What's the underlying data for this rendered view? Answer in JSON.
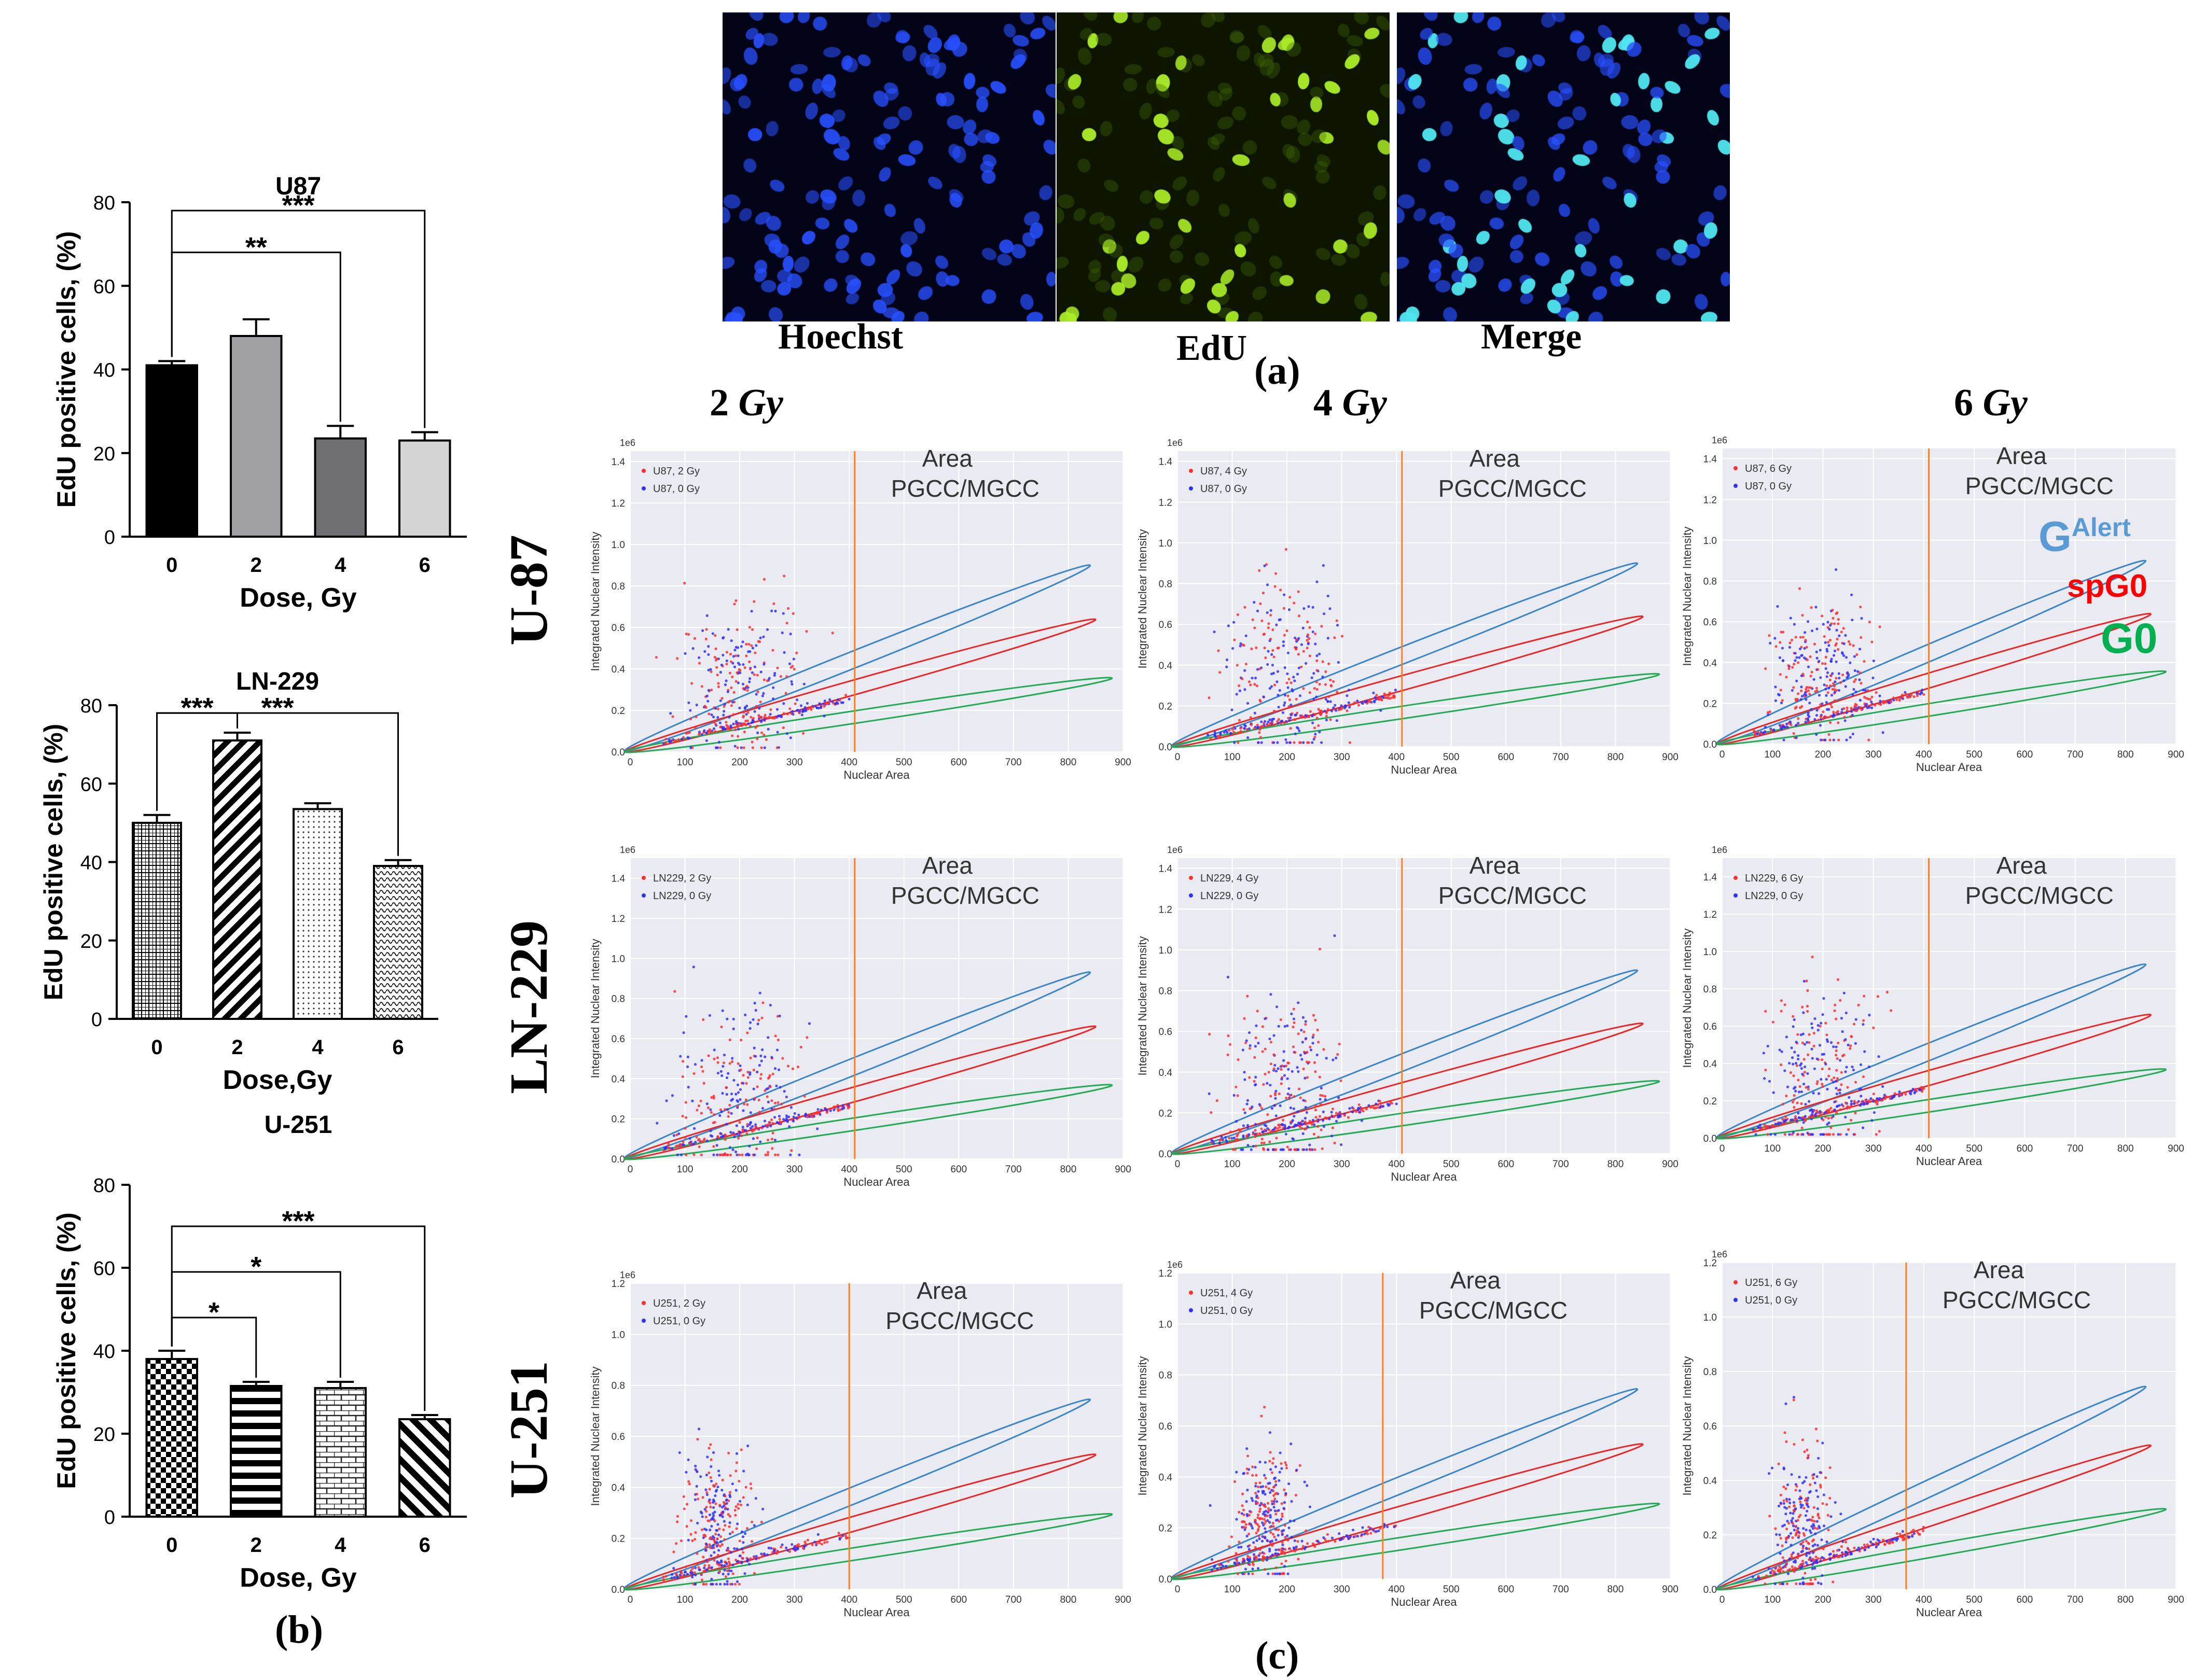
{
  "figure_labels": {
    "a": "(a)",
    "b": "(b)",
    "c": "(c)"
  },
  "microscopy": {
    "panels": [
      {
        "label": "Hoechst",
        "color": "#2a4cff"
      },
      {
        "label": "EdU",
        "color": "#a8e020"
      },
      {
        "label": "Merge",
        "color": "#40d8e8"
      }
    ]
  },
  "column_headers": [
    {
      "dose": "2",
      "unit": "Gy"
    },
    {
      "dose": "4",
      "unit": "Gy"
    },
    {
      "dose": "6",
      "unit": "Gy"
    }
  ],
  "row_headers": [
    "U-87",
    "LN-229",
    "U-251"
  ],
  "scatter_common": {
    "xlabel": "Nuclear Area",
    "ylabel": "Integrated Nuclear Intensity",
    "exponent": "1e6",
    "area_label": "Area",
    "pgcc_label": "PGCC/MGCC",
    "treated_color": "#ff3030",
    "control_color": "#3030ff",
    "line_color": "#ff7f1e",
    "ellipse_colors": {
      "galert": "#3a86c8",
      "spg0": "#e82828",
      "g0": "#22aa55"
    }
  },
  "zone_labels": {
    "galert_main": "G",
    "galert_sup": "Alert",
    "spg0": "spG0",
    "g0": "G0",
    "galert_color": "#5b9bd5",
    "spg0_color": "#ff0000",
    "g0_color": "#00b050"
  },
  "chart_data": [
    {
      "type": "bar",
      "title": "U87",
      "xlabel": "Dose, Gy",
      "ylabel": "EdU positive cells, (%)",
      "categories": [
        "0",
        "2",
        "4",
        "6"
      ],
      "values": [
        41,
        48,
        23.5,
        23
      ],
      "errors": [
        1,
        4,
        3,
        2
      ],
      "ylim": [
        0,
        80
      ],
      "yticks": [
        "0",
        "20",
        "40",
        "60",
        "80"
      ],
      "fills": [
        "black",
        "#a0a0a4",
        "#707074",
        "#d4d4d4"
      ],
      "significance": [
        {
          "label": "**",
          "from": 0,
          "to": 2
        },
        {
          "label": "***",
          "from": 0,
          "to": 3
        }
      ]
    },
    {
      "type": "bar",
      "title": "LN-229",
      "xlabel": "Dose,Gy",
      "ylabel": "EdU positive cells, (%)",
      "categories": [
        "0",
        "2",
        "4",
        "6"
      ],
      "values": [
        50,
        71,
        53.5,
        39
      ],
      "errors": [
        2,
        2,
        1.5,
        1.5
      ],
      "ylim": [
        0,
        80
      ],
      "yticks": [
        "0",
        "20",
        "40",
        "60",
        "80"
      ],
      "fills": [
        "grid",
        "diag",
        "dots",
        "wave"
      ],
      "significance": [
        {
          "label": "***",
          "from": 0,
          "to": 1
        },
        {
          "label": "***",
          "from": 0,
          "to": 3
        }
      ]
    },
    {
      "type": "bar",
      "title": "U-251",
      "xlabel": "Dose, Gy",
      "ylabel": "EdU positive cells, (%)",
      "categories": [
        "0",
        "2",
        "4",
        "6"
      ],
      "values": [
        38,
        31.5,
        31,
        23.5
      ],
      "errors": [
        2,
        1,
        1.5,
        1
      ],
      "ylim": [
        0,
        80
      ],
      "yticks": [
        "0",
        "20",
        "40",
        "60",
        "80"
      ],
      "fills": [
        "checker",
        "hstripe",
        "brick",
        "diag2"
      ],
      "significance": [
        {
          "label": "*",
          "from": 0,
          "to": 1
        },
        {
          "label": "*",
          "from": 0,
          "to": 2
        },
        {
          "label": "***",
          "from": 0,
          "to": 3
        }
      ]
    },
    {
      "type": "scatter",
      "legend": [
        "U87, 2 Gy",
        "U87, 0 Gy"
      ],
      "xlim": [
        0,
        900
      ],
      "ylim": [
        0,
        1.45
      ],
      "yticks": [
        "0.0",
        "0.2",
        "0.4",
        "0.6",
        "0.8",
        "1.0",
        "1.2",
        "1.4"
      ],
      "xticks": [
        "0",
        "100",
        "200",
        "300",
        "400",
        "500",
        "600",
        "700",
        "800",
        "900"
      ],
      "vline_x": 410,
      "scatter_peak": 0.62,
      "scatter_spread": 0.2
    },
    {
      "type": "scatter",
      "legend": [
        "U87, 4 Gy",
        "U87, 0 Gy"
      ],
      "xlim": [
        0,
        900
      ],
      "ylim": [
        0,
        1.45
      ],
      "yticks": [
        "0.0",
        "0.2",
        "0.4",
        "0.6",
        "0.8",
        "1.0",
        "1.2",
        "1.4"
      ],
      "xticks": [
        "0",
        "100",
        "200",
        "300",
        "400",
        "500",
        "600",
        "700",
        "800",
        "900"
      ],
      "vline_x": 410,
      "scatter_peak": 0.65,
      "scatter_spread": 0.22
    },
    {
      "type": "scatter",
      "legend": [
        "U87, 6 Gy",
        "U87, 0 Gy"
      ],
      "xlim": [
        0,
        900
      ],
      "ylim": [
        0,
        1.45
      ],
      "yticks": [
        "0.0",
        "0.2",
        "0.4",
        "0.6",
        "0.8",
        "1.0",
        "1.2",
        "1.4"
      ],
      "xticks": [
        "0",
        "100",
        "200",
        "300",
        "400",
        "500",
        "600",
        "700",
        "800",
        "900"
      ],
      "vline_x": 410,
      "scatter_peak": 0.62,
      "scatter_spread": 0.2
    },
    {
      "type": "scatter",
      "legend": [
        "LN229, 2 Gy",
        "LN229, 0 Gy"
      ],
      "xlim": [
        0,
        900
      ],
      "ylim": [
        0,
        1.5
      ],
      "yticks": [
        "0.0",
        "0.2",
        "0.4",
        "0.6",
        "0.8",
        "1.0",
        "1.2",
        "1.4"
      ],
      "xticks": [
        "0",
        "100",
        "200",
        "300",
        "400",
        "500",
        "600",
        "700",
        "800",
        "900"
      ],
      "vline_x": 410,
      "scatter_peak": 0.55,
      "scatter_spread": 0.25
    },
    {
      "type": "scatter",
      "legend": [
        "LN229, 4 Gy",
        "LN229, 0 Gy"
      ],
      "xlim": [
        0,
        900
      ],
      "ylim": [
        0,
        1.45
      ],
      "yticks": [
        "0.0",
        "0.2",
        "0.4",
        "0.6",
        "0.8",
        "1.0",
        "1.2",
        "1.4"
      ],
      "xticks": [
        "0",
        "100",
        "200",
        "300",
        "400",
        "500",
        "600",
        "700",
        "800",
        "900"
      ],
      "vline_x": 410,
      "scatter_peak": 0.58,
      "scatter_spread": 0.25
    },
    {
      "type": "scatter",
      "legend": [
        "LN229, 6 Gy",
        "LN229, 0 Gy"
      ],
      "xlim": [
        0,
        900
      ],
      "ylim": [
        0,
        1.5
      ],
      "yticks": [
        "0.0",
        "0.2",
        "0.4",
        "0.6",
        "0.8",
        "1.0",
        "1.2",
        "1.4"
      ],
      "xticks": [
        "0",
        "100",
        "200",
        "300",
        "400",
        "500",
        "600",
        "700",
        "800",
        "900"
      ],
      "vline_x": 410,
      "scatter_peak": 0.55,
      "scatter_spread": 0.25
    },
    {
      "type": "scatter",
      "legend": [
        "U251, 2 Gy",
        "U251, 0 Gy"
      ],
      "xlim": [
        0,
        900
      ],
      "ylim": [
        0,
        1.2
      ],
      "yticks": [
        "0.0",
        "0.2",
        "0.4",
        "0.6",
        "0.8",
        "1.0",
        "1.2"
      ],
      "xticks": [
        "0",
        "100",
        "200",
        "300",
        "400",
        "500",
        "600",
        "700",
        "800",
        "900"
      ],
      "vline_x": 400,
      "scatter_peak": 0.45,
      "scatter_spread": 0.15
    },
    {
      "type": "scatter",
      "legend": [
        "U251, 4 Gy",
        "U251, 0 Gy"
      ],
      "xlim": [
        0,
        900
      ],
      "ylim": [
        0,
        1.2
      ],
      "yticks": [
        "0.0",
        "0.2",
        "0.4",
        "0.6",
        "0.8",
        "1.0",
        "1.2"
      ],
      "xticks": [
        "0",
        "100",
        "200",
        "300",
        "400",
        "500",
        "600",
        "700",
        "800",
        "900"
      ],
      "vline_x": 375,
      "scatter_peak": 0.45,
      "scatter_spread": 0.15
    },
    {
      "type": "scatter",
      "legend": [
        "U251, 6 Gy",
        "U251, 0 Gy"
      ],
      "xlim": [
        0,
        900
      ],
      "ylim": [
        0,
        1.2
      ],
      "yticks": [
        "0.0",
        "0.2",
        "0.4",
        "0.6",
        "0.8",
        "1.0",
        "1.2"
      ],
      "xticks": [
        "0",
        "100",
        "200",
        "300",
        "400",
        "500",
        "600",
        "700",
        "800",
        "900"
      ],
      "vline_x": 365,
      "scatter_peak": 0.45,
      "scatter_spread": 0.15
    }
  ]
}
